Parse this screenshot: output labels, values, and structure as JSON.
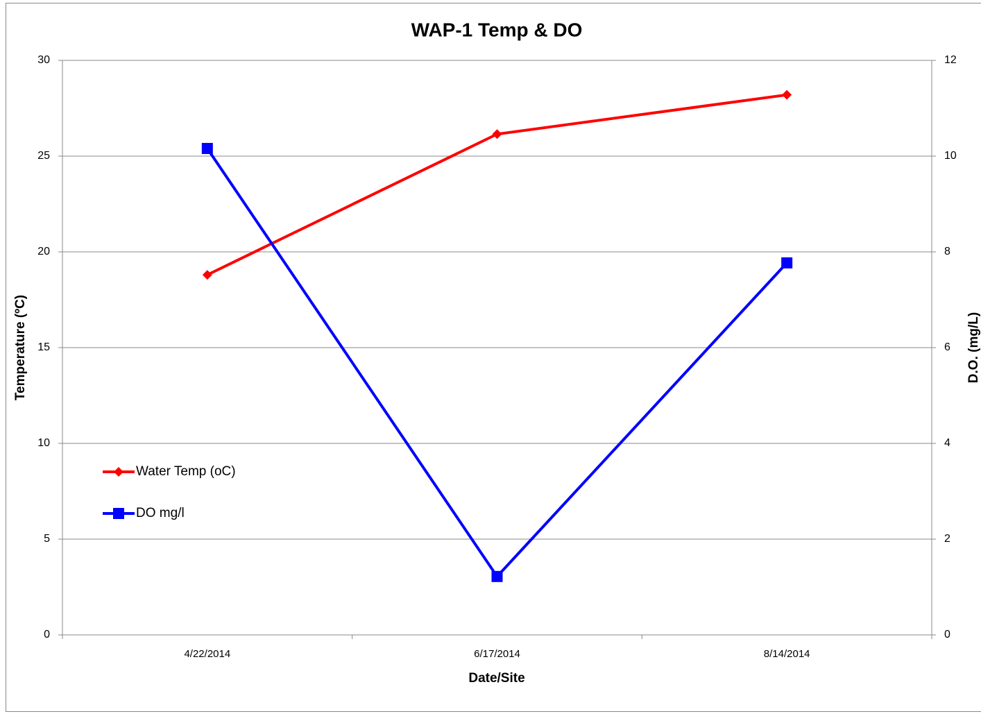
{
  "chart_data": {
    "type": "line",
    "title": "WAP-1 Temp & DO",
    "x_label": "Date/Site",
    "y_label": "Temperature (ºC)",
    "y2_label": "D.O. (mg/L)",
    "categories": [
      "4/22/2014",
      "6/17/2014",
      "8/14/2014"
    ],
    "series": [
      {
        "name": "Water Temp (oC)",
        "color": "#ff0000",
        "marker": "diamond",
        "values": [
          18.8,
          26.15,
          28.2
        ]
      },
      {
        "name": "DO mg/l",
        "color": "#0000ff",
        "marker": "square",
        "axis": "y2",
        "values": [
          10.16,
          1.22,
          7.77
        ]
      }
    ],
    "ylim": [
      0,
      30
    ],
    "yticks": [
      0,
      5,
      10,
      15,
      20,
      25,
      30
    ],
    "y2lim": [
      0,
      12
    ],
    "y2ticks": [
      0,
      2,
      4,
      6,
      8,
      10,
      12
    ],
    "grid": true,
    "legend": "left"
  }
}
